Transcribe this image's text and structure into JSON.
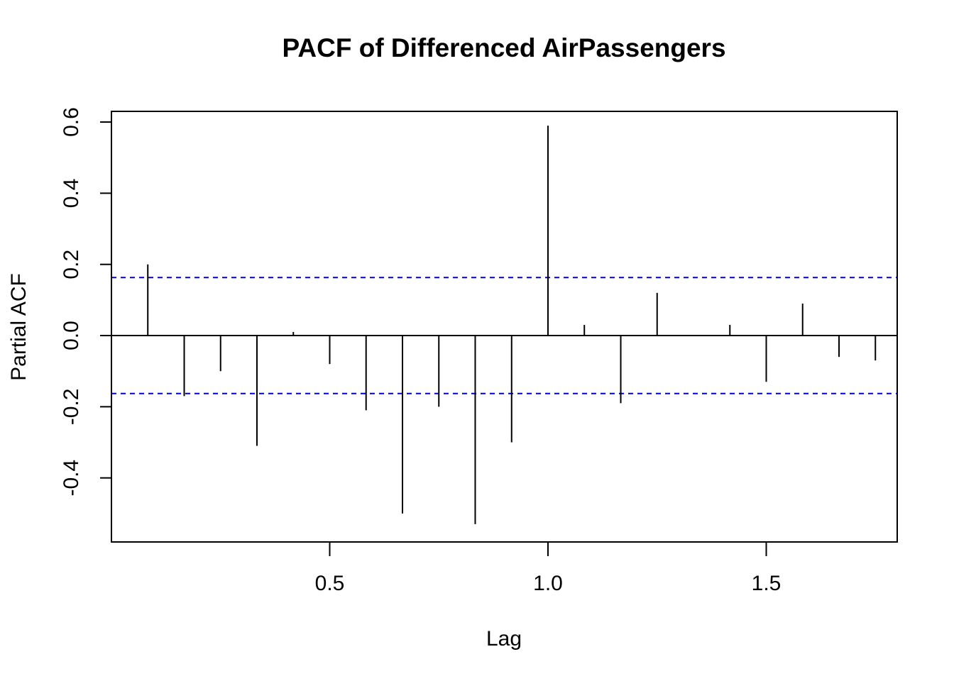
{
  "chart_data": {
    "type": "bar",
    "title": "PACF of Differenced AirPassengers",
    "xlabel": "Lag",
    "ylabel": "Partial ACF",
    "xlim": [
      0.0,
      1.8
    ],
    "ylim": [
      -0.58,
      0.63
    ],
    "x_ticks": [
      0.5,
      1.0,
      1.5
    ],
    "x_tick_labels": [
      "0.5",
      "1.0",
      "1.5"
    ],
    "y_ticks": [
      -0.4,
      -0.2,
      0.0,
      0.2,
      0.4,
      0.6
    ],
    "y_tick_labels": [
      "-0.4",
      "-0.2",
      "0.0",
      "0.2",
      "0.4",
      "0.6"
    ],
    "lags": [
      0.0833,
      0.1667,
      0.25,
      0.3333,
      0.4167,
      0.5,
      0.5833,
      0.6667,
      0.75,
      0.8333,
      0.9167,
      1.0,
      1.0833,
      1.1667,
      1.25,
      1.3333,
      1.4167,
      1.5,
      1.5833,
      1.6667,
      1.75
    ],
    "values": [
      0.2,
      -0.17,
      -0.1,
      -0.31,
      0.01,
      -0.08,
      -0.21,
      -0.5,
      -0.2,
      -0.53,
      -0.3,
      0.59,
      0.03,
      -0.19,
      0.12,
      0.0,
      0.03,
      -0.13,
      0.09,
      -0.06,
      -0.07
    ],
    "confidence_bound": 0.163,
    "zero_line": 0.0,
    "grid": false,
    "colors": {
      "spike": "#000000",
      "confidence_line": "#0000cc",
      "axis": "#000000"
    }
  }
}
